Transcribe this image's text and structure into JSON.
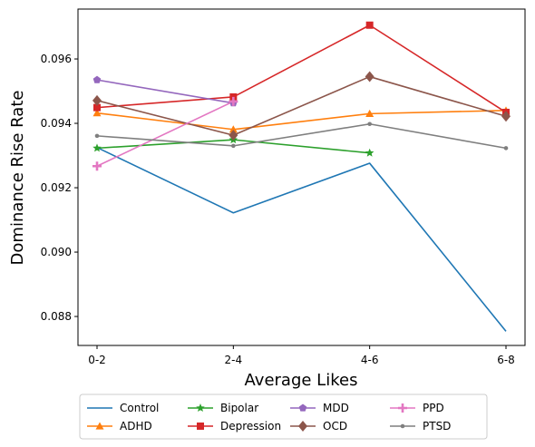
{
  "chart_data": {
    "type": "line",
    "title": "",
    "xlabel": "Average Likes",
    "ylabel": "Dominance Rise Rate",
    "categories": [
      "0-2",
      "2-4",
      "4-6",
      "6-8"
    ],
    "ylim": [
      0.0871,
      0.09755
    ],
    "yticks": [
      0.088,
      0.09,
      0.092,
      0.094,
      0.096
    ],
    "ytick_labels": [
      "0.088",
      "0.090",
      "0.092",
      "0.094",
      "0.096"
    ],
    "grid": false,
    "legend_position": "bottom",
    "series": [
      {
        "name": "Control",
        "color": "#1f77b4",
        "marker": "none",
        "values": [
          0.09325,
          0.09122,
          0.09276,
          0.08754
        ]
      },
      {
        "name": "ADHD",
        "color": "#ff7f0e",
        "marker": "triangle",
        "values": [
          0.09432,
          0.09381,
          0.0943,
          0.0944
        ]
      },
      {
        "name": "Bipolar",
        "color": "#2ca02c",
        "marker": "star",
        "values": [
          0.09323,
          0.09349,
          0.09308,
          null
        ]
      },
      {
        "name": "Depression",
        "color": "#d62728",
        "marker": "square",
        "values": [
          0.09449,
          0.09482,
          0.09705,
          0.09434
        ]
      },
      {
        "name": "MDD",
        "color": "#9467bd",
        "marker": "pentagon",
        "values": [
          0.09535,
          0.09463,
          null,
          null
        ]
      },
      {
        "name": "OCD",
        "color": "#8c564b",
        "marker": "diamond",
        "values": [
          0.09471,
          0.09363,
          0.09545,
          0.09422
        ]
      },
      {
        "name": "PPD",
        "color": "#e377c2",
        "marker": "plus",
        "values": [
          0.09267,
          0.09468,
          null,
          null
        ]
      },
      {
        "name": "PTSD",
        "color": "#7f7f7f",
        "marker": "dot",
        "values": [
          0.09361,
          0.0933,
          0.09398,
          0.09323
        ]
      }
    ]
  }
}
